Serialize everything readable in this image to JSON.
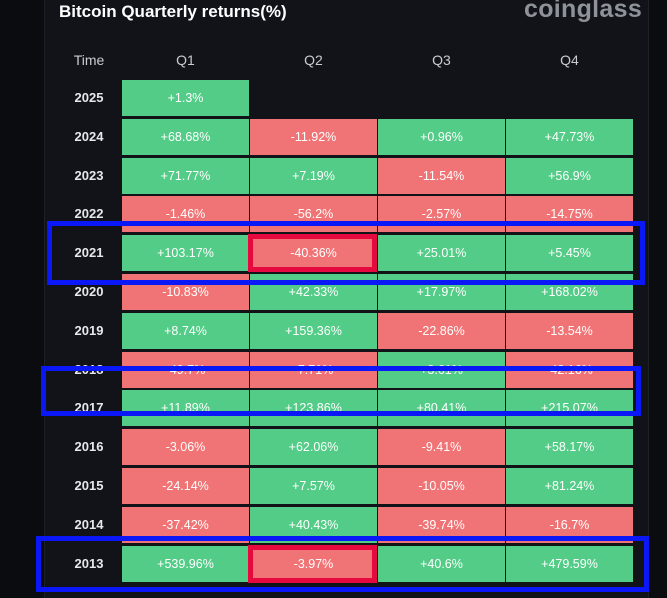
{
  "header": {
    "title": "Bitcoin Quarterly returns(%)",
    "brand": "coinglass"
  },
  "colors": {
    "positive": "#52cc86",
    "negative": "#f07475",
    "highlight_row": "#0a17f7",
    "highlight_cell": "#e5093f"
  },
  "chart_data": {
    "type": "table",
    "title": "Bitcoin Quarterly returns(%)",
    "corner_label": "Time",
    "columns": [
      "Q1",
      "Q2",
      "Q3",
      "Q4"
    ],
    "rows": [
      {
        "year": "2025",
        "values": [
          "+1.3%",
          null,
          null,
          null
        ]
      },
      {
        "year": "2024",
        "values": [
          "+68.68%",
          "-11.92%",
          "+0.96%",
          "+47.73%"
        ]
      },
      {
        "year": "2023",
        "values": [
          "+71.77%",
          "+7.19%",
          "-11.54%",
          "+56.9%"
        ]
      },
      {
        "year": "2022",
        "values": [
          "-1.46%",
          "-56.2%",
          "-2.57%",
          "-14.75%"
        ]
      },
      {
        "year": "2021",
        "values": [
          "+103.17%",
          "-40.36%",
          "+25.01%",
          "+5.45%"
        ]
      },
      {
        "year": "2020",
        "values": [
          "-10.83%",
          "+42.33%",
          "+17.97%",
          "+168.02%"
        ]
      },
      {
        "year": "2019",
        "values": [
          "+8.74%",
          "+159.36%",
          "-22.86%",
          "-13.54%"
        ]
      },
      {
        "year": "2018",
        "values": [
          "-49.7%",
          "-7.71%",
          "+3.61%",
          "-42.16%"
        ]
      },
      {
        "year": "2017",
        "values": [
          "+11.89%",
          "+123.86%",
          "+80.41%",
          "+215.07%"
        ]
      },
      {
        "year": "2016",
        "values": [
          "-3.06%",
          "+62.06%",
          "-9.41%",
          "+58.17%"
        ]
      },
      {
        "year": "2015",
        "values": [
          "-24.14%",
          "+7.57%",
          "-10.05%",
          "+81.24%"
        ]
      },
      {
        "year": "2014",
        "values": [
          "-37.42%",
          "+40.43%",
          "-39.74%",
          "-16.7%"
        ]
      },
      {
        "year": "2013",
        "values": [
          "+539.96%",
          "-3.97%",
          "+40.6%",
          "+479.59%"
        ]
      }
    ],
    "highlighted_rows": [
      "2021",
      "2017",
      "2013"
    ],
    "highlighted_cells": [
      {
        "year": "2021",
        "column": "Q2"
      },
      {
        "year": "2013",
        "column": "Q2"
      }
    ]
  }
}
